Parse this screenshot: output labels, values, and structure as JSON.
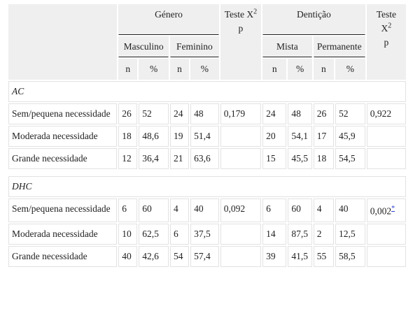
{
  "header": {
    "group1": "Género",
    "group2": "Dentição",
    "test1": {
      "prefix": "Teste X",
      "sup": "2",
      "suffix": "p"
    },
    "test2": {
      "prefix": "Teste X",
      "sup": "2",
      "suffix": "p"
    },
    "sub": [
      "Masculino",
      "Feminino",
      "Mista",
      "Permanente"
    ],
    "units": [
      "n",
      "%",
      "n",
      "%",
      "n",
      "%",
      "n",
      "%"
    ]
  },
  "sections": [
    {
      "title": "AC",
      "rows": [
        {
          "label": "Sem/pequena necessidade",
          "cells": [
            "26",
            "52",
            "24",
            "48",
            "0,179",
            "24",
            "48",
            "26",
            "52",
            "0,922"
          ]
        },
        {
          "label": "Moderada necessidade",
          "cells": [
            "18",
            "48,6",
            "19",
            "51,4",
            null,
            "20",
            "54,1",
            "17",
            "45,9",
            null
          ]
        },
        {
          "label": "Grande necessidade",
          "cells": [
            "12",
            "36,4",
            "21",
            "63,6",
            null,
            "15",
            "45,5",
            "18",
            "54,5",
            null
          ]
        }
      ]
    },
    {
      "title": "DHC",
      "rows": [
        {
          "label": "Sem/pequena necessidade",
          "cells": [
            "6",
            "60",
            "4",
            "40",
            "0,092",
            "6",
            "60",
            "4",
            "40",
            "0,002"
          ],
          "note": "*"
        },
        {
          "label": "Moderada necessidade",
          "cells": [
            "10",
            "62,5",
            "6",
            "37,5",
            null,
            "14",
            "87,5",
            "2",
            "12,5",
            null
          ]
        },
        {
          "label": "Grande necessidade",
          "cells": [
            "40",
            "42,6",
            "54",
            "57,4",
            null,
            "39",
            "41,5",
            "55",
            "58,5",
            null
          ]
        }
      ]
    }
  ]
}
